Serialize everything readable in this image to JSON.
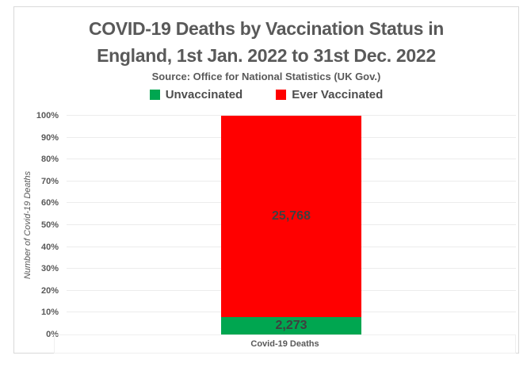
{
  "chart_data": {
    "type": "bar",
    "stacked": true,
    "percent_stacked": true,
    "title": "COVID-19 Deaths by Vaccination Status in England, 1st Jan. 2022 to 31st Dec. 2022",
    "title_lines": [
      "COVID-19 Deaths by Vaccination Status in",
      "England, 1st Jan. 2022 to 31st Dec. 2022"
    ],
    "subtitle": "Source: Office for National Statistics (UK Gov.)",
    "ylabel": "Number of Covid-19 Deaths",
    "xlabel": "",
    "categories": [
      "Covid-19 Deaths"
    ],
    "series": [
      {
        "name": "Unvaccinated",
        "values": [
          2273
        ],
        "label": "2,273",
        "color": "#00a650"
      },
      {
        "name": "Ever Vaccinated",
        "values": [
          25768
        ],
        "label": "25,768",
        "color": "#ff0000"
      }
    ],
    "yticks": [
      "0%",
      "10%",
      "20%",
      "30%",
      "40%",
      "50%",
      "60%",
      "70%",
      "80%",
      "90%",
      "100%"
    ],
    "ylim": [
      0,
      100
    ],
    "grid": true,
    "legend_position": "top"
  },
  "colors": {
    "title_text": "#595959",
    "axis_text": "#595959",
    "data_label_text": "#3f3f3f",
    "gridline": "#ececec",
    "frame_border": "#d9d9d9"
  }
}
